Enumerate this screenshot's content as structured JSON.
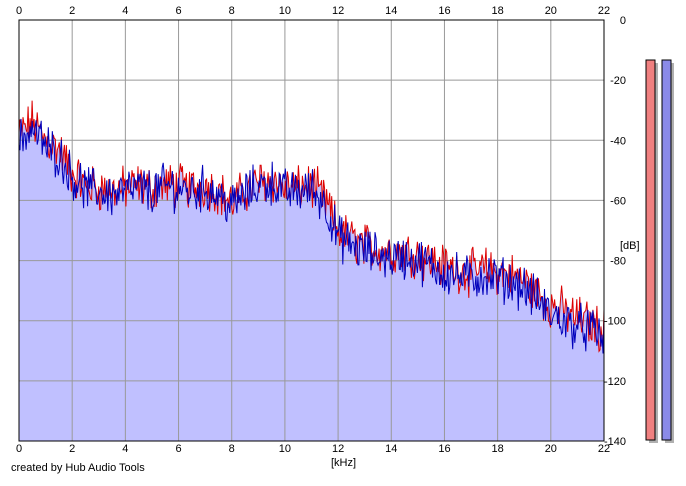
{
  "credit": "created by Hub Audio Tools",
  "colors": {
    "fill": "#c0c0ff",
    "left": "#dd0000",
    "right": "#0000bb",
    "grid": "#999999",
    "meter_left": "#f08080",
    "meter_right": "#8a8ae8",
    "frame": "#000000"
  },
  "chart_data": {
    "type": "line",
    "xlabel": "[kHz]",
    "ylabel": "[dB]",
    "xlim": [
      0,
      22
    ],
    "ylim": [
      -140,
      0
    ],
    "x_ticks": [
      "0",
      "2",
      "4",
      "6",
      "8",
      "10",
      "12",
      "14",
      "16",
      "18",
      "20",
      "22"
    ],
    "y_ticks": [
      "0",
      "-20",
      "-40",
      "-60",
      "-80",
      "-100",
      "-120",
      "-140"
    ],
    "grid": true,
    "x": [
      0,
      0.5,
      1,
      1.5,
      2,
      2.5,
      3,
      3.5,
      4,
      4.5,
      5,
      5.5,
      6,
      6.5,
      7,
      7.5,
      8,
      8.5,
      9,
      9.5,
      10,
      10.5,
      11,
      11.5,
      12,
      12.5,
      13,
      13.5,
      14,
      14.5,
      15,
      15.5,
      16,
      16.5,
      17,
      17.5,
      18,
      18.5,
      19,
      19.5,
      20,
      20.5,
      21,
      21.5,
      22
    ],
    "series": [
      {
        "color_key": "left",
        "values": [
          -38,
          -34,
          -40,
          -43,
          -51,
          -55,
          -56,
          -57,
          -56,
          -55,
          -56,
          -55,
          -55,
          -56,
          -55,
          -57,
          -61,
          -57,
          -54,
          -53,
          -56,
          -56,
          -55,
          -60,
          -70,
          -73,
          -75,
          -76,
          -77,
          -77,
          -78,
          -80,
          -82,
          -83,
          -84,
          -83,
          -84,
          -85,
          -87,
          -91,
          -95,
          -97,
          -99,
          -101,
          -103
        ]
      },
      {
        "color_key": "right",
        "values": [
          -40,
          -36,
          -42,
          -45,
          -52,
          -56,
          -57,
          -58,
          -57,
          -56,
          -57,
          -55,
          -56,
          -57,
          -56,
          -58,
          -62,
          -58,
          -55,
          -54,
          -57,
          -57,
          -56,
          -61,
          -72,
          -75,
          -77,
          -78,
          -79,
          -79,
          -80,
          -82,
          -84,
          -85,
          -86,
          -85,
          -86,
          -87,
          -89,
          -93,
          -98,
          -100,
          -102,
          -103,
          -106
        ]
      }
    ],
    "peak_meters": [
      {
        "color_key": "meter_left",
        "level": 1.0
      },
      {
        "color_key": "meter_right",
        "level": 1.0
      }
    ]
  }
}
